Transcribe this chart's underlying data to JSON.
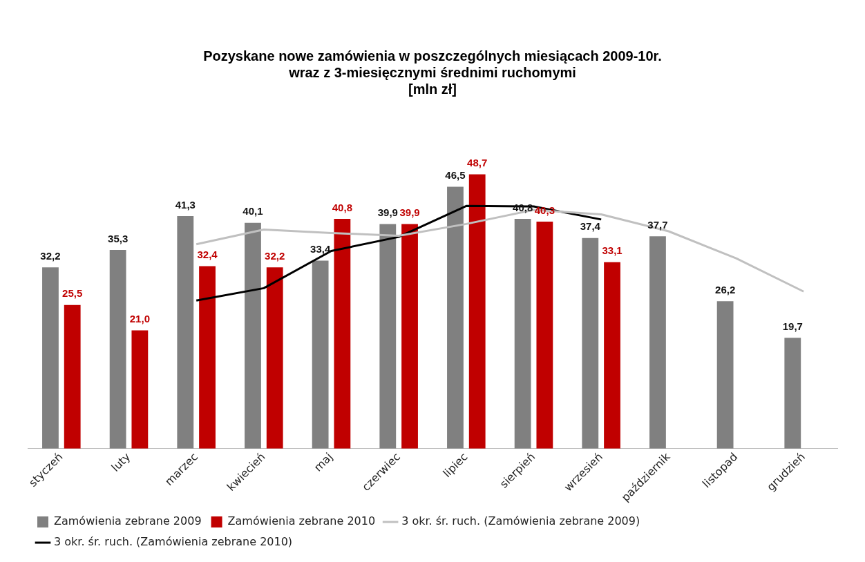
{
  "chart_data": {
    "type": "bar",
    "title": [
      "Pozyskane nowe zamówienia w poszczególnych miesiącach 2009-10r.",
      "wraz z 3-miesięcznymi średnimi ruchomymi",
      "[mln zł]"
    ],
    "categories": [
      "styczeń",
      "luty",
      "marzec",
      "kwiecień",
      "maj",
      "czerwiec",
      "lipiec",
      "sierpień",
      "wrzesień",
      "październik",
      "listopad",
      "grudzień"
    ],
    "series": [
      {
        "name": "Zamówienia zebrane 2009",
        "color": "#808080",
        "values": [
          32.2,
          35.3,
          41.3,
          40.1,
          33.4,
          39.9,
          46.5,
          40.8,
          37.4,
          37.7,
          26.2,
          19.7
        ],
        "value_labels": [
          "32,2",
          "35,3",
          "41,3",
          "40,1",
          "33,4",
          "39,9",
          "46,5",
          "40,8",
          "37,4",
          "37,7",
          "26,2",
          "19,7"
        ]
      },
      {
        "name": "Zamówienia zebrane 2010",
        "color": "#c00000",
        "values": [
          25.5,
          21.0,
          32.4,
          32.2,
          40.8,
          39.9,
          48.7,
          40.3,
          33.1,
          null,
          null,
          null
        ],
        "value_labels": [
          "25,5",
          "21,0",
          "32,4",
          "32,2",
          "40,8",
          "39,9",
          "48,7",
          "40,3",
          "33,1",
          null,
          null,
          null
        ]
      },
      {
        "name": "3 okr. śr. ruch. (Zamówienia zebrane 2009)",
        "type": "line",
        "color": "#c0c0c0",
        "values": [
          null,
          null,
          36.3,
          38.9,
          38.3,
          37.8,
          39.9,
          42.4,
          41.6,
          38.6,
          33.8,
          27.9
        ]
      },
      {
        "name": "3 okr. śr. ruch. (Zamówienia zebrane 2010)",
        "type": "line",
        "color": "#000000",
        "values": [
          null,
          null,
          26.3,
          28.5,
          35.1,
          37.6,
          43.1,
          43.0,
          40.7,
          null,
          null,
          null
        ]
      }
    ],
    "grid": false,
    "legend": "bottom",
    "marker": "none",
    "tick_labels": "x"
  }
}
